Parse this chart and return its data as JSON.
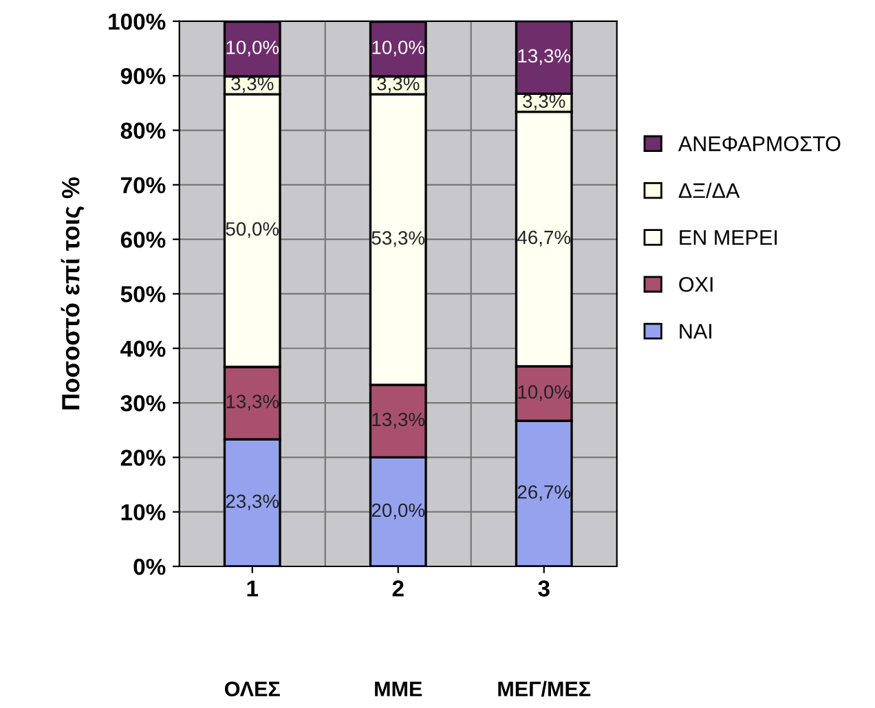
{
  "chart_data": {
    "type": "bar",
    "stacked": true,
    "ylabel": "Ποσοστό επί τοις %",
    "categories": [
      "1",
      "2",
      "3"
    ],
    "annotations": [
      "ΟΛΕΣ",
      "ΜΜΕ",
      "ΜΕΓ/ΜΕΣ"
    ],
    "series": [
      {
        "name": "ΝΑΙ",
        "color": "#95a3ef",
        "values": [
          23.3,
          20.0,
          26.7
        ],
        "value_labels": [
          "23,3%",
          "20,0%",
          "26,7%"
        ]
      },
      {
        "name": "ΟΧΙ",
        "color": "#a9506f",
        "values": [
          13.3,
          13.3,
          10.0
        ],
        "value_labels": [
          "13,3%",
          "13,3%",
          "10,0%"
        ]
      },
      {
        "name": "ΕΝ ΜΕΡΕΙ",
        "color": "#fffff2",
        "values": [
          50.0,
          53.3,
          46.7
        ],
        "value_labels": [
          "50,0%",
          "53,3%",
          "46,7%"
        ]
      },
      {
        "name": "ΔΞ/ΔΑ",
        "color": "#ffffe6",
        "values": [
          3.3,
          3.3,
          3.3
        ],
        "value_labels": [
          "3,3%",
          "3,3%",
          "3,3%"
        ]
      },
      {
        "name": "ΑΝΕΦΑΡΜΟΣΤΟ",
        "color": "#6e2e6c",
        "values": [
          10.0,
          10.0,
          13.3
        ],
        "value_labels": [
          "10,0%",
          "10,0%",
          "13,3%"
        ]
      }
    ],
    "ylim": [
      0,
      100
    ],
    "yticks": [
      {
        "value": 0,
        "label": "0%"
      },
      {
        "value": 10,
        "label": "10%"
      },
      {
        "value": 20,
        "label": "20%"
      },
      {
        "value": 30,
        "label": "30%"
      },
      {
        "value": 40,
        "label": "40%"
      },
      {
        "value": 50,
        "label": "50%"
      },
      {
        "value": 60,
        "label": "60%"
      },
      {
        "value": 70,
        "label": "70%"
      },
      {
        "value": 80,
        "label": "80%"
      },
      {
        "value": 90,
        "label": "90%"
      },
      {
        "value": 100,
        "label": "100%"
      }
    ],
    "grid": true,
    "legend": "right"
  }
}
